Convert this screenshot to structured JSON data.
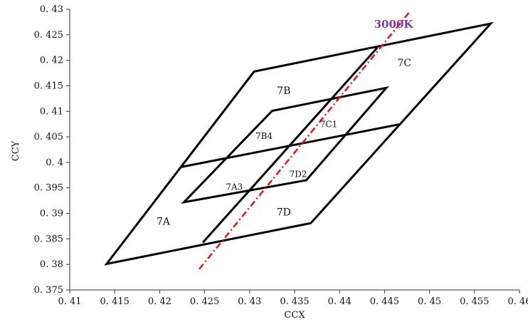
{
  "chart_data": {
    "type": "line",
    "title": "",
    "xlabel": "CCX",
    "ylabel": "CCY",
    "xlim": [
      0.41,
      0.46
    ],
    "ylim": [
      0.375,
      0.43
    ],
    "x_ticks": [
      "0. 41",
      "0. 415",
      "0. 42",
      "0. 425",
      "0. 43",
      "0. 435",
      "0. 44",
      "0. 445",
      "0. 45",
      "0. 455",
      "0. 46"
    ],
    "y_ticks": [
      "0. 375",
      "0. 38",
      "0. 385",
      "0. 39",
      "0. 395",
      "0. 4",
      "0. 405",
      "0. 41",
      "0. 415",
      "0. 42",
      "0. 425",
      "0. 43"
    ],
    "grid": false,
    "polygons": [
      {
        "points": [
          [
            0.4141,
            0.3801
          ],
          [
            0.4305,
            0.4178
          ],
          [
            0.4568,
            0.4272
          ],
          [
            0.4368,
            0.3881
          ]
        ]
      },
      {
        "points": [
          [
            0.4227,
            0.3922
          ],
          [
            0.4325,
            0.4101
          ],
          [
            0.4452,
            0.4146
          ],
          [
            0.4363,
            0.3965
          ]
        ]
      }
    ],
    "segments": [
      {
        "from": [
          0.4224,
          0.3991
        ],
        "to": [
          0.4468,
          0.4075
        ]
      },
      {
        "from": [
          0.4248,
          0.3843
        ],
        "to": [
          0.4442,
          0.4225
        ]
      }
    ],
    "cct_line": {
      "label": "3000K",
      "color": "#e8101a",
      "label_color": "#7a3a9a",
      "points": [
        [
          0.4244,
          0.3791
        ],
        [
          0.4477,
          0.4293
        ]
      ]
    },
    "regions": [
      {
        "label": "7A",
        "x": 0.4204,
        "y": 0.3885
      },
      {
        "label": "7B",
        "x": 0.4338,
        "y": 0.4141
      },
      {
        "label": "7C",
        "x": 0.4472,
        "y": 0.4195
      },
      {
        "label": "7D",
        "x": 0.4338,
        "y": 0.3903
      },
      {
        "label": "7B4",
        "x": 0.4316,
        "y": 0.4053
      },
      {
        "label": "7C1",
        "x": 0.4388,
        "y": 0.4076
      },
      {
        "label": "7A3",
        "x": 0.4283,
        "y": 0.3953
      },
      {
        "label": "7D2",
        "x": 0.4354,
        "y": 0.3978
      }
    ]
  }
}
